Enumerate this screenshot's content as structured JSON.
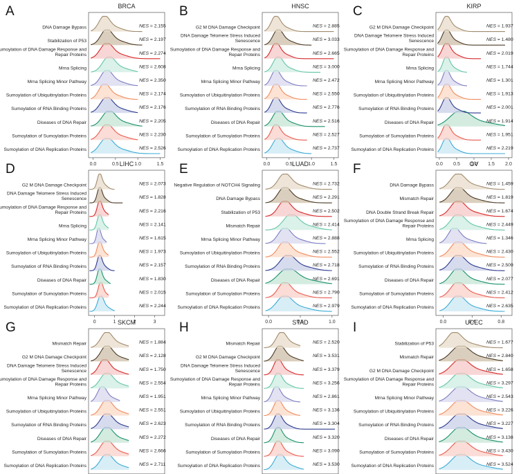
{
  "figure": {
    "palette": [
      "#a08a6c",
      "#4a3a26",
      "#d62728",
      "#62c4a6",
      "#7c7cc0",
      "#f08a5d",
      "#2b3a8c",
      "#1a8f6a",
      "#e85a4f",
      "#3aaad4"
    ],
    "fill_palette": [
      "#e8dccb",
      "#cdbfa8",
      "#f7c8c8",
      "#cdeee2",
      "#d8d8ef",
      "#fbd9c6",
      "#c9cfe8",
      "#c6e6d6",
      "#f9d0c8",
      "#cbe8f4"
    ]
  },
  "chart_data": [
    {
      "type": "ridgeline",
      "panel": "A",
      "title": "BRCA",
      "xticks": [
        "0.0",
        "0.5",
        "1.0",
        "1.5"
      ],
      "xlim": [
        -0.1,
        1.6
      ],
      "pathways": [
        "DNA Damage Bypass",
        "Stabilization of P53",
        "Sumoylation of DNA Damage Response and Repair Proteins",
        "Mrna Splicing",
        "Mrna Splicing Minor Pathway",
        "Sumoylation of Ubiquitinylation Proteins",
        "Sumoylation of RNA Binding Proteins",
        "Diseases of DNA Repair",
        "Sumoylation of Sumoylation Proteins",
        "Sumoylation of DNA Replication Proteins"
      ],
      "nes": [
        "2.155",
        "2.197",
        "2.274",
        "2.608",
        "2.350",
        "2.174",
        "2.176",
        "2.205",
        "2.230",
        "2.526"
      ],
      "peaks": [
        0.25,
        0.3,
        0.3,
        0.35,
        0.3,
        0.25,
        0.3,
        0.35,
        0.3,
        0.3
      ],
      "widths": [
        0.12,
        0.13,
        0.14,
        0.14,
        0.13,
        0.12,
        0.14,
        0.15,
        0.14,
        0.15
      ],
      "ends": [
        1.1,
        1.1,
        1.5,
        1.0,
        1.0,
        1.0,
        1.0,
        1.1,
        1.0,
        1.5
      ]
    },
    {
      "type": "ridgeline",
      "panel": "B",
      "title": "HNSC",
      "xticks": [
        "0.0",
        "0.5",
        "1.0",
        "1.5"
      ],
      "xlim": [
        -0.1,
        1.6
      ],
      "pathways": [
        "G2 M DNA Damage Checkpoint",
        "DNA Damage Telomere Stress Induced Senescence",
        "Sumoylation of DNA Damage Response and Repair Proteins",
        "Mrna Splicing",
        "Mrna Splicing Minor Pathway",
        "Sumoylation of Ubiquitinylation Proteins",
        "Sumoylation of RNA Binding Proteins",
        "Diseases of DNA Repair",
        "Sumoylation of Sumoylation Proteins",
        "Sumoylation of DNA Replication Proteins"
      ],
      "nes": [
        "2.885",
        "3.033",
        "2.665",
        "3.000",
        "2.472",
        "2.550",
        "2.776",
        "2.516",
        "2.527",
        "2.737"
      ],
      "peaks": [
        0.2,
        0.25,
        0.2,
        0.25,
        0.2,
        0.2,
        0.2,
        0.25,
        0.2,
        0.25
      ],
      "widths": [
        0.1,
        0.11,
        0.1,
        0.11,
        0.1,
        0.1,
        0.1,
        0.12,
        0.1,
        0.12
      ],
      "ends": [
        1.5,
        1.0,
        1.5,
        1.2,
        0.9,
        0.9,
        0.9,
        1.3,
        0.9,
        1.0
      ]
    },
    {
      "type": "ridgeline",
      "panel": "C",
      "title": "KIRP",
      "xticks": [
        "0.0",
        "0.5",
        "1.0",
        "1.5",
        "2.0"
      ],
      "xlim": [
        -0.1,
        2.1
      ],
      "pathways": [
        "G2 M DNA Damage Checkpoint",
        "DNA Damage Telomere Stress Induced Senescence",
        "Sumoylation of DNA Damage Response and Repair Proteins",
        "Mrna Splicing",
        "Mrna Splicing Minor Pathway",
        "Sumoylation of Ubiquitinylation Proteins",
        "Sumoylation of RNA Binding Proteins",
        "Diseases of DNA Repair",
        "Sumoylation of Sumoylation Proteins",
        "Sumoylation of DNA Replication Proteins"
      ],
      "nes": [
        "1.937",
        "1.480",
        "2.019",
        "1.744",
        "1.301",
        "1.913",
        "2.001",
        "1.914",
        "1.951",
        "2.219"
      ],
      "peaks": [
        0.2,
        0.2,
        0.2,
        0.2,
        0.2,
        0.2,
        0.2,
        0.6,
        0.2,
        0.2
      ],
      "widths": [
        0.12,
        0.12,
        0.12,
        0.1,
        0.1,
        0.12,
        0.12,
        0.3,
        0.12,
        0.12
      ],
      "ends": [
        1.9,
        1.9,
        1.2,
        0.8,
        0.8,
        1.2,
        1.2,
        1.9,
        1.2,
        1.9
      ]
    },
    {
      "type": "ridgeline",
      "panel": "D",
      "title": "LIHC",
      "xticks": [
        "0",
        "1",
        "2",
        "3"
      ],
      "xlim": [
        -0.3,
        3.5
      ],
      "pathways": [
        "G2 M DNA Damage Checkpoint",
        "DNA Damage Telomere Stress Induced Senescence",
        "Sumoylation of DNA Damage Response and Repair Proteins",
        "Mrna Splicing",
        "Mrna Splicing Minor Pathway",
        "Sumoylation of Ubiquitinylation Proteins",
        "Sumoylation of RNA Binding Proteins",
        "Diseases of DNA Repair",
        "Sumoylation of Sumoylation Proteins",
        "Sumoylation of DNA Replication Proteins"
      ],
      "nes": [
        "2.073",
        "1.828",
        "2.216",
        "2.141",
        "1.615",
        "1.973",
        "2.157",
        "1.830",
        "2.015",
        "2.244"
      ],
      "peaks": [
        0.25,
        0.25,
        0.25,
        0.25,
        0.2,
        0.25,
        0.25,
        0.25,
        0.3,
        0.3
      ],
      "widths": [
        0.12,
        0.12,
        0.12,
        0.12,
        0.1,
        0.12,
        0.12,
        0.12,
        0.12,
        0.15
      ],
      "ends": [
        1.0,
        1.4,
        0.7,
        0.7,
        0.6,
        0.7,
        1.0,
        0.8,
        0.7,
        1.0
      ]
    },
    {
      "type": "ridgeline",
      "panel": "E",
      "title": "LUAD",
      "xticks": [
        "0.0",
        "0.5",
        "1.0"
      ],
      "xlim": [
        -0.1,
        1.1
      ],
      "pathways": [
        "Negative Regulation of NOTCH4 Signaling",
        "DNA Damage Bypass",
        "Stabilization of P53",
        "Mismatch Repair",
        "Mrna Splicing Minor Pathway",
        "Sumoylation of Ubiquitinylation Proteins",
        "Sumoylation of RNA Binding Proteins",
        "Diseases of DNA Repair",
        "Sumoylation of Sumoylation Proteins",
        "Sumoylation of DNA Replication Proteins"
      ],
      "nes": [
        "2.732",
        "2.291",
        "2.502",
        "2.414",
        "2.888",
        "2.552",
        "2.718",
        "2.691",
        "2.790",
        "2.979"
      ],
      "peaks": [
        0.25,
        0.25,
        0.25,
        0.35,
        0.25,
        0.25,
        0.3,
        0.3,
        0.25,
        0.25
      ],
      "widths": [
        0.1,
        0.1,
        0.1,
        0.12,
        0.1,
        0.1,
        0.12,
        0.15,
        0.1,
        0.12
      ],
      "ends": [
        1.0,
        1.0,
        1.0,
        1.0,
        0.9,
        1.0,
        1.0,
        1.0,
        1.0,
        1.0
      ]
    },
    {
      "type": "ridgeline",
      "panel": "F",
      "title": "OV",
      "xticks": [
        "0.0",
        "0.4",
        "0.8"
      ],
      "xlim": [
        -0.1,
        0.95
      ],
      "pathways": [
        "DNA Damage Bypass",
        "Mismatch Repair",
        "DNA Double Strand Break Repair",
        "Sumoylation of DNA Damage Response and Repair Proteins",
        "Mrna Splicing",
        "Sumoylation of Ubiquitinylation Proteins",
        "Sumoylation of RNA Binding Proteins",
        "Diseases of DNA Repair",
        "Sumoylation of Sumoylation Proteins",
        "Sumoylation of DNA Replication Proteins"
      ],
      "nes": [
        "1.459",
        "1.819",
        "1.674",
        "2.449",
        "1.346",
        "2.430",
        "2.509",
        "2.077",
        "2.412",
        "2.635"
      ],
      "peaks": [
        0.2,
        0.2,
        0.2,
        0.2,
        0.15,
        0.2,
        0.2,
        0.2,
        0.2,
        0.2
      ],
      "widths": [
        0.1,
        0.1,
        0.1,
        0.1,
        0.08,
        0.1,
        0.1,
        0.1,
        0.1,
        0.1
      ],
      "ends": [
        0.85,
        0.85,
        0.85,
        0.85,
        0.6,
        0.85,
        0.85,
        0.85,
        0.85,
        0.85
      ]
    },
    {
      "type": "ridgeline",
      "panel": "G",
      "title": "SKCM",
      "xticks": [
        "0.0",
        "0.5",
        "1.0",
        "1.5"
      ],
      "xlim": [
        -0.1,
        1.6
      ],
      "pathways": [
        "Mismatch Repair",
        "G2 M DNA Damage Checkpoint",
        "DNA Damage Telomere Stress Induced Senescence",
        "Sumoylation of DNA Damage Response and Repair Proteins",
        "Mrna Splicing Minor Pathway",
        "Sumoylation of Ubiquitinylation Proteins",
        "Sumoylation of RNA Binding Proteins",
        "Diseases of DNA Repair",
        "Sumoylation of Sumoylation Proteins",
        "Sumoylation of DNA Replication Proteins"
      ],
      "nes": [
        "1.884",
        "2.128",
        "1.750",
        "2.554",
        "1.951",
        "2.551",
        "2.623",
        "2.272",
        "2.666",
        "2.711"
      ],
      "peaks": [
        0.3,
        0.3,
        0.25,
        0.3,
        0.2,
        0.3,
        0.3,
        0.3,
        0.3,
        0.3
      ],
      "widths": [
        0.13,
        0.13,
        0.12,
        0.14,
        0.1,
        0.13,
        0.14,
        0.14,
        0.14,
        0.14
      ],
      "ends": [
        0.8,
        0.8,
        0.8,
        0.8,
        0.6,
        0.8,
        0.8,
        0.8,
        0.8,
        0.8
      ]
    },
    {
      "type": "ridgeline",
      "panel": "H",
      "title": "STAD",
      "xticks": [
        "0.0",
        "0.5",
        "1.0",
        "1.5",
        "2.0"
      ],
      "xlim": [
        -0.1,
        2.1
      ],
      "pathways": [
        "Mismatch Repair",
        "G2 M DNA Damage Checkpoint",
        "DNA Damage Telomere Stress Induced Senescence",
        "Sumoylation of DNA Damage Response and Repair Proteins",
        "Mrna Splicing Minor Pathway",
        "Sumoylation of Ubiquitinylation Proteins",
        "Sumoylation of RNA Binding Proteins",
        "Diseases of DNA Repair",
        "Sumoylation of Sumoylation Proteins",
        "Sumoylation of DNA Replication Proteins"
      ],
      "nes": [
        "2.520",
        "3.531",
        "3.379",
        "3.256",
        "2.861",
        "3.136",
        "3.304",
        "3.320",
        "3.090",
        "3.530"
      ],
      "peaks": [
        0.45,
        0.4,
        0.35,
        0.35,
        0.3,
        0.35,
        0.35,
        0.35,
        0.35,
        0.4
      ],
      "widths": [
        0.15,
        0.15,
        0.12,
        0.12,
        0.12,
        0.12,
        0.12,
        0.12,
        0.12,
        0.15
      ],
      "ends": [
        1.0,
        1.1,
        1.1,
        1.1,
        1.0,
        1.0,
        2.0,
        1.1,
        1.1,
        1.1
      ]
    },
    {
      "type": "ridgeline",
      "panel": "I",
      "title": "UCEC",
      "xticks": [
        "0.0",
        "0.5",
        "1.0"
      ],
      "xlim": [
        -0.1,
        1.15
      ],
      "pathways": [
        "Stabilization of P53",
        "Mismatch Repair",
        "G2 M DNA Damage Checkpoint",
        "Sumoylation of DNA Damage Response and Repair Proteins",
        "Mrna Splicing Minor Pathway",
        "Sumoylation of Ubiquitinylation Proteins",
        "Sumoylation of RNA Binding Proteins",
        "Diseases of DNA Repair",
        "Sumoylation of Sumoylation Proteins",
        "Sumoylation of DNA Replication Proteins"
      ],
      "nes": [
        "1.677",
        "2.840",
        "1.658",
        "3.297",
        "2.543",
        "3.226",
        "3.227",
        "3.138",
        "3.430",
        "3.524"
      ],
      "peaks": [
        0.2,
        0.3,
        0.3,
        0.3,
        0.3,
        0.3,
        0.3,
        0.3,
        0.3,
        0.3
      ],
      "widths": [
        0.12,
        0.15,
        0.15,
        0.15,
        0.15,
        0.15,
        0.15,
        0.15,
        0.15,
        0.15
      ],
      "ends": [
        1.0,
        1.0,
        1.0,
        1.0,
        1.0,
        1.0,
        1.0,
        1.0,
        1.0,
        1.0
      ]
    }
  ]
}
